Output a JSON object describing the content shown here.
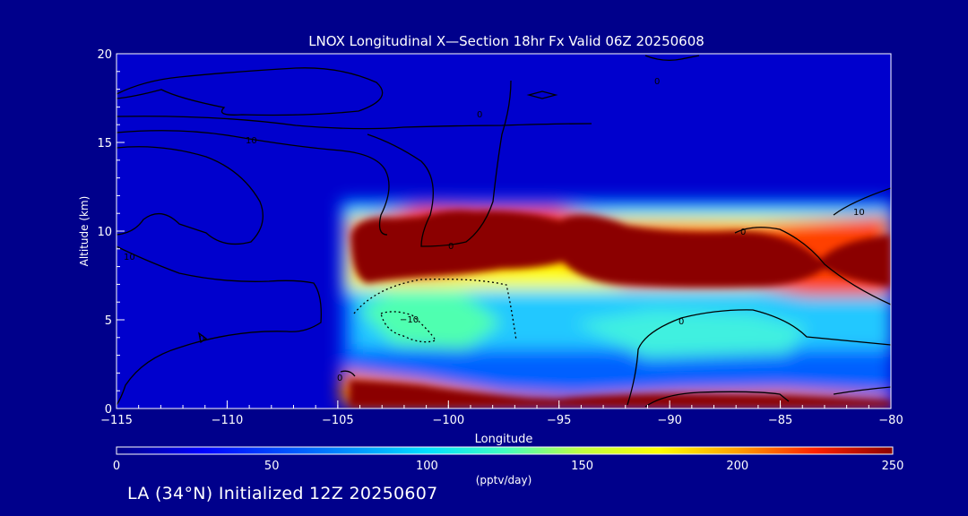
{
  "chart_data": {
    "type": "heatmap",
    "title": "LNOX Longitudinal X—Section 18hr  Fx Valid 06Z 20250608",
    "xlabel": "Longitude",
    "ylabel": "Altitude (km)",
    "xlim": [
      -115,
      -80
    ],
    "ylim": [
      0,
      20
    ],
    "x_ticks": [
      -115,
      -110,
      -105,
      -100,
      -95,
      -90,
      -85,
      -80
    ],
    "x_tick_labels": [
      "−115",
      "−110",
      "−105",
      "−100",
      "−95",
      "−90",
      "−85",
      "−80"
    ],
    "y_ticks": [
      0,
      5,
      10,
      15,
      20
    ],
    "y_tick_labels": [
      "0",
      "5",
      "10",
      "15",
      "20"
    ],
    "colorbar": {
      "label": "(pptv/day)",
      "min": 0,
      "max": 250,
      "ticks": [
        0,
        50,
        100,
        150,
        200,
        250
      ],
      "tick_labels": [
        "0",
        "50",
        "100",
        "150",
        "200",
        "250"
      ],
      "colors": [
        "#00008b",
        "#0000ff",
        "#0080ff",
        "#00e0ff",
        "#40ffc0",
        "#c0ff40",
        "#ffff00",
        "#ffa000",
        "#ff2000",
        "#8b0000"
      ]
    },
    "field": {
      "description_values_pptv_per_day": "estimated",
      "upper_band": {
        "lon_range": [
          -105,
          -80
        ],
        "alt_range": [
          7,
          11
        ],
        "peak": 250
      },
      "lower_band": {
        "lon_range": [
          -105,
          -80
        ],
        "alt_range": [
          0,
          1.5
        ],
        "peak": 250
      },
      "mid_level": {
        "lon_range": [
          -105,
          -80
        ],
        "alt_range": [
          2,
          6.5
        ],
        "peak": 110
      }
    },
    "contour_labels": [
      "10",
      "10",
      "0",
      "0",
      "0",
      "0",
      "−10",
      "0",
      "0",
      "10",
      "0"
    ]
  },
  "footer": "LA (34°N) Initialized 12Z 20250607"
}
